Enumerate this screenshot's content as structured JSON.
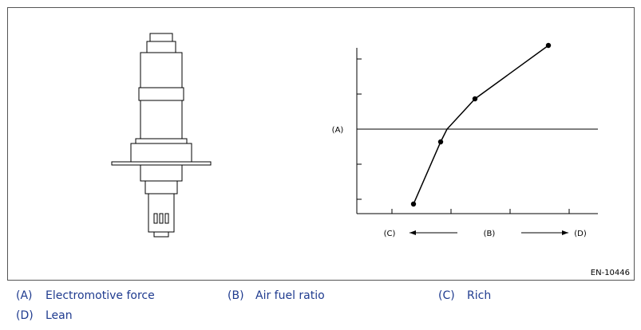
{
  "figure": {
    "label_a": "(A)",
    "label_b": "(B)",
    "label_c": "(C)",
    "label_d": "(D)",
    "code": "EN-10446"
  },
  "legend": [
    {
      "key": "(A)",
      "text": "Electromotive force"
    },
    {
      "key": "(B)",
      "text": "Air fuel ratio"
    },
    {
      "key": "(C)",
      "text": "Rich"
    },
    {
      "key": "(D)",
      "text": "Lean"
    }
  ]
}
